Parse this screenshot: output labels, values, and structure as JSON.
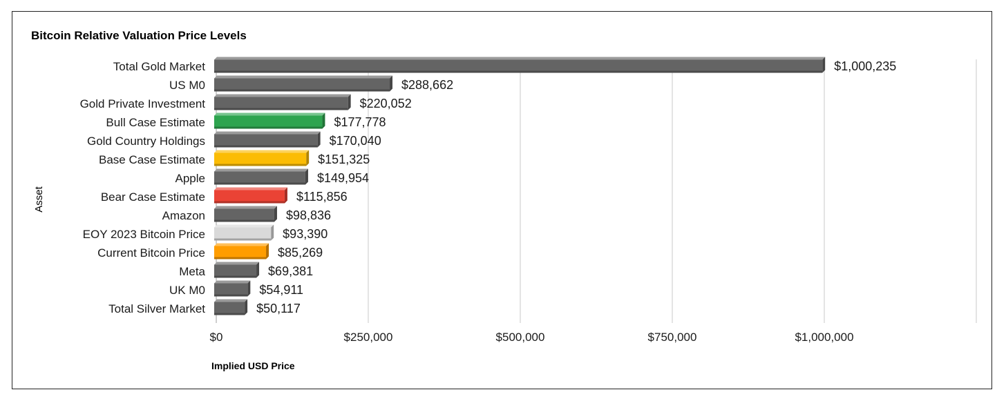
{
  "chart_data": {
    "type": "bar",
    "orientation": "horizontal",
    "title": "Bitcoin Relative Valuation Price Levels",
    "xlabel": "Implied USD Price",
    "ylabel": "Asset",
    "xlim": [
      0,
      1250000
    ],
    "x_ticks": [
      0,
      250000,
      500000,
      750000,
      1000000
    ],
    "x_tick_labels": [
      "$0",
      "$250,000",
      "$500,000",
      "$750,000",
      "$1,000,000"
    ],
    "grid": "vertical",
    "legend": "none",
    "categories": [
      "Total Gold Market",
      "US M0",
      "Gold Private Investment",
      "Bull Case Estimate",
      "Gold Country Holdings",
      "Base Case Estimate",
      "Apple",
      "Bear Case Estimate",
      "Amazon",
      "EOY 2023 Bitcoin Price",
      "Current Bitcoin Price",
      "Meta",
      "UK M0",
      "Total Silver Market"
    ],
    "values": [
      1000235,
      288662,
      220052,
      177778,
      170040,
      151325,
      149954,
      115856,
      98836,
      93390,
      85269,
      69381,
      54911,
      50117
    ],
    "value_labels": [
      "$1,000,235",
      "$288,662",
      "$220,052",
      "$177,778",
      "$170,040",
      "$151,325",
      "$149,954",
      "$115,856",
      "$98,836",
      "$93,390",
      "$85,269",
      "$69,381",
      "$54,911",
      "$50,117"
    ],
    "colors": [
      "#646464",
      "#646464",
      "#646464",
      "#2ea44f",
      "#646464",
      "#fbbc05",
      "#646464",
      "#ea4335",
      "#646464",
      "#d9d9d9",
      "#ff9d00",
      "#646464",
      "#646464",
      "#646464"
    ]
  }
}
